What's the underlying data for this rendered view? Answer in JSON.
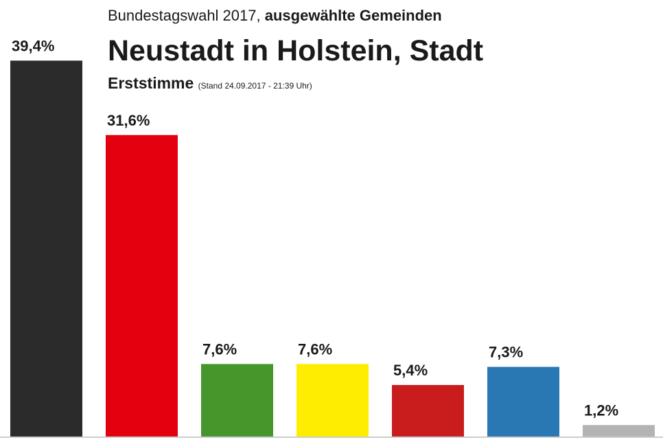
{
  "chart_data": {
    "type": "bar",
    "supertitle": "Bundestagswahl 2017,",
    "supertitle_bold": "ausgewählte Gemeinden",
    "title": "Neustadt in Holstein, Stadt",
    "subtitle": "Erststimme",
    "subtitle_note": "(Stand 24.09.2017 - 21:39 Uhr)",
    "categories": [
      null,
      null,
      null,
      null,
      null,
      null,
      null
    ],
    "values": [
      39.4,
      31.6,
      7.6,
      7.6,
      5.4,
      7.3,
      1.2
    ],
    "value_labels": [
      "39,4%",
      "31,6%",
      "7,6%",
      "7,6%",
      "5,4%",
      "7,3%",
      "1,2%"
    ],
    "colors": [
      "#2b2b2b",
      "#e3000f",
      "#46962b",
      "#ffed00",
      "#c91d1d",
      "#2a78b3",
      "#b3b3b3"
    ]
  }
}
